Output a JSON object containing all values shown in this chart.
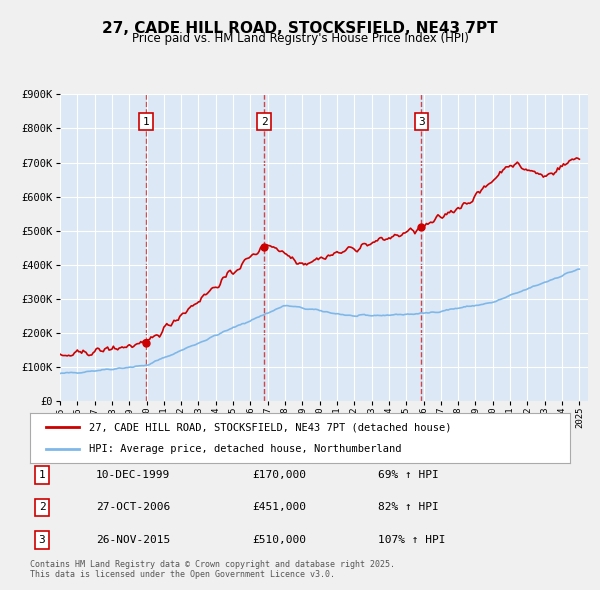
{
  "title": "27, CADE HILL ROAD, STOCKSFIELD, NE43 7PT",
  "subtitle": "Price paid vs. HM Land Registry's House Price Index (HPI)",
  "background_color": "#f0f4fa",
  "plot_bg_color": "#dce8f5",
  "legend_line1": "27, CADE HILL ROAD, STOCKSFIELD, NE43 7PT (detached house)",
  "legend_line2": "HPI: Average price, detached house, Northumberland",
  "red_color": "#cc0000",
  "blue_color": "#7fb8e8",
  "sale_dates": [
    "1999-12-10",
    "2006-10-27",
    "2015-11-26"
  ],
  "sale_prices": [
    170000,
    451000,
    510000
  ],
  "sale_labels": [
    "1",
    "2",
    "3"
  ],
  "table_rows": [
    {
      "label": "1",
      "date": "10-DEC-1999",
      "price": "£170,000",
      "hpi": "69% ↑ HPI"
    },
    {
      "label": "2",
      "date": "27-OCT-2006",
      "price": "£451,000",
      "hpi": "82% ↑ HPI"
    },
    {
      "label": "3",
      "date": "26-NOV-2015",
      "price": "£510,000",
      "hpi": "107% ↑ HPI"
    }
  ],
  "footer": "Contains HM Land Registry data © Crown copyright and database right 2025.\nThis data is licensed under the Open Government Licence v3.0.",
  "ylim": [
    0,
    900000
  ],
  "yticks": [
    0,
    100000,
    200000,
    300000,
    400000,
    500000,
    600000,
    700000,
    800000,
    900000
  ],
  "ylabel_format": "£{0}K"
}
